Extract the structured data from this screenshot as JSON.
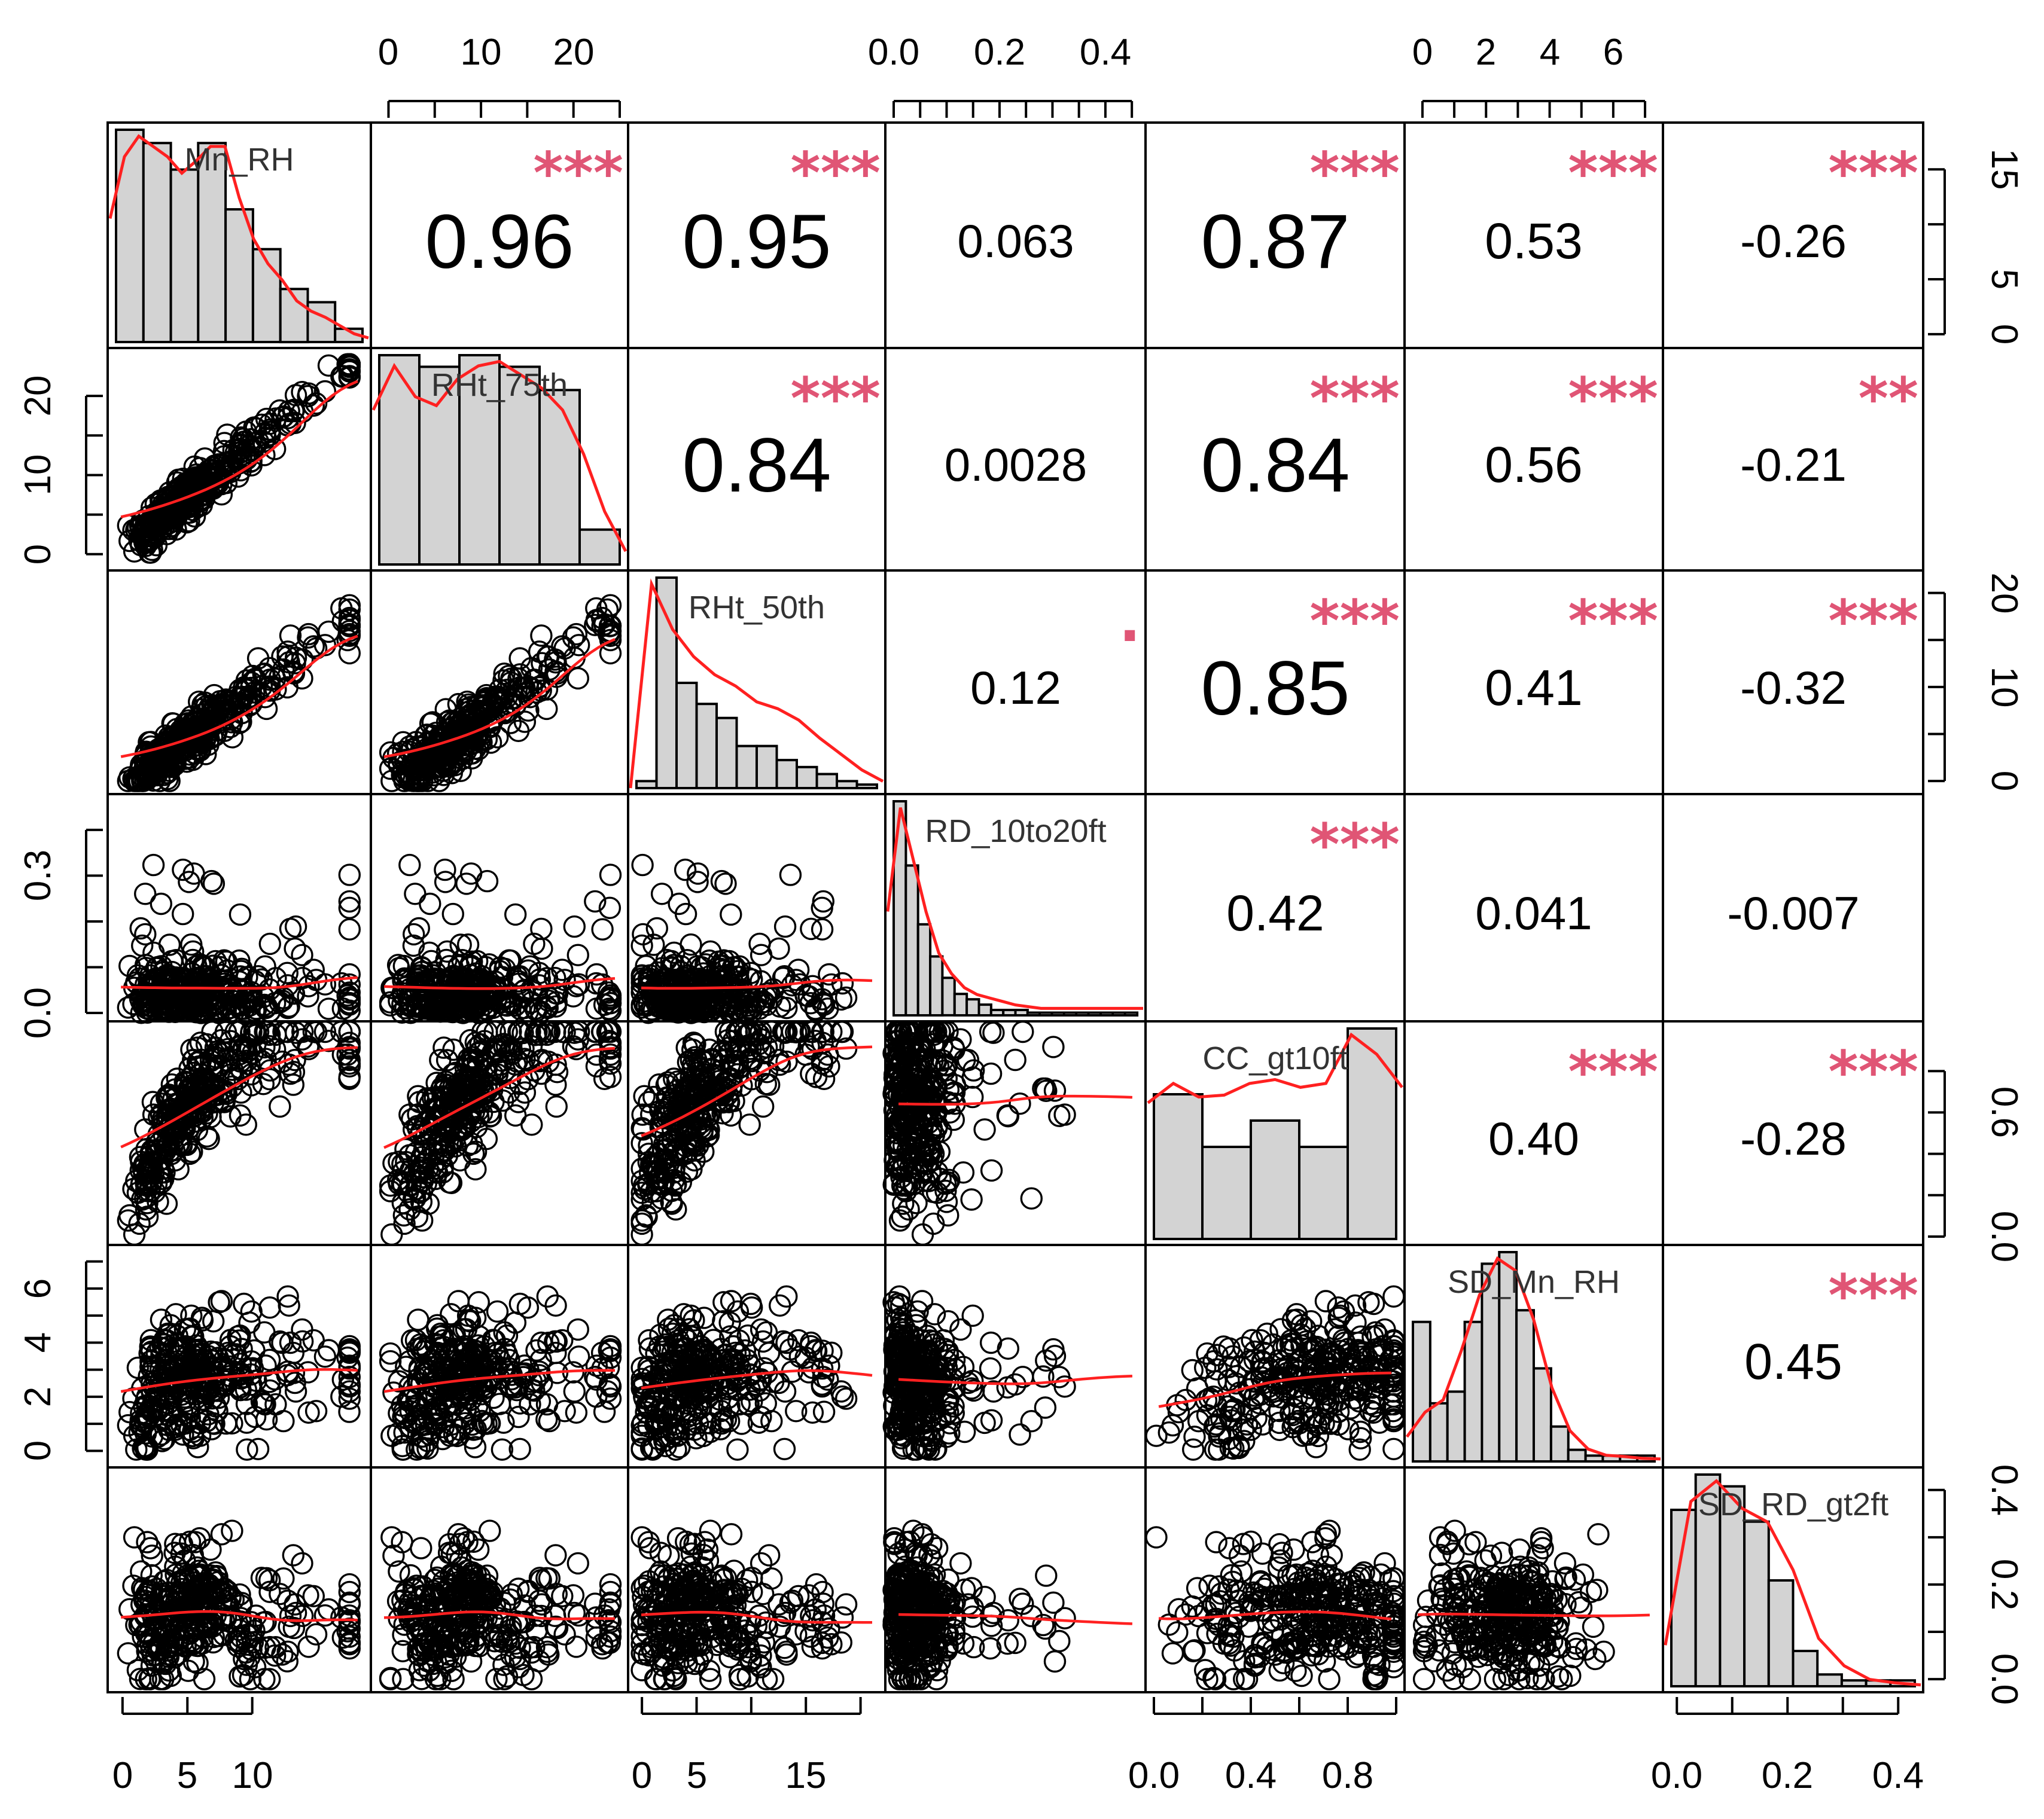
{
  "chart_data": {
    "type": "scatter-matrix",
    "title": "",
    "variables": [
      "Mn_RH",
      "RHt_75th",
      "RHt_50th",
      "RD_10to20ft",
      "CC_gt10ft",
      "SD_Mn_RH",
      "SD_RD_gt2ft"
    ],
    "ranges": [
      [
        -0.5,
        18.5
      ],
      [
        -1,
        25
      ],
      [
        -0.5,
        21.5
      ],
      [
        0,
        0.46
      ],
      [
        0,
        1
      ],
      [
        -0.3,
        7.3
      ],
      [
        -0.01,
        0.43
      ]
    ],
    "colors": {
      "hist_fill": "#d3d3d3",
      "smooth_line": "#ff2020",
      "significance": "#e05575",
      "point_stroke": "#000000"
    },
    "top_axes": [
      {
        "column": 1,
        "ticks": [
          0,
          5,
          10,
          15,
          20,
          25
        ],
        "labels": [
          {
            "v": 0,
            "t": "0"
          },
          {
            "v": 10,
            "t": "10"
          },
          {
            "v": 20,
            "t": "20"
          }
        ]
      },
      {
        "column": 3,
        "ticks": [
          0,
          0.05,
          0.1,
          0.15,
          0.2,
          0.25,
          0.3,
          0.35,
          0.4,
          0.45
        ],
        "labels": [
          {
            "v": 0,
            "t": "0.0"
          },
          {
            "v": 0.2,
            "t": "0.2"
          },
          {
            "v": 0.4,
            "t": "0.4"
          }
        ]
      },
      {
        "column": 5,
        "ticks": [
          0,
          1,
          2,
          3,
          4,
          5,
          6,
          7
        ],
        "labels": [
          {
            "v": 0,
            "t": "0"
          },
          {
            "v": 2,
            "t": "2"
          },
          {
            "v": 4,
            "t": "4"
          },
          {
            "v": 6,
            "t": "6"
          }
        ]
      }
    ],
    "bottom_axes": [
      {
        "column": 0,
        "ticks": [
          0,
          5,
          10
        ],
        "labels": [
          {
            "v": 0,
            "t": "0"
          },
          {
            "v": 5,
            "t": "5"
          },
          {
            "v": 10,
            "t": "10"
          }
        ]
      },
      {
        "column": 2,
        "ticks": [
          0,
          5,
          10,
          15,
          20
        ],
        "labels": [
          {
            "v": 0,
            "t": "0"
          },
          {
            "v": 5,
            "t": "5"
          },
          {
            "v": 15,
            "t": "15"
          }
        ]
      },
      {
        "column": 4,
        "ticks": [
          0,
          0.2,
          0.4,
          0.6,
          0.8,
          1.0
        ],
        "labels": [
          {
            "v": 0,
            "t": "0.0"
          },
          {
            "v": 0.4,
            "t": "0.4"
          },
          {
            "v": 0.8,
            "t": "0.8"
          }
        ]
      },
      {
        "column": 6,
        "ticks": [
          0,
          0.1,
          0.2,
          0.3,
          0.4
        ],
        "labels": [
          {
            "v": 0,
            "t": "0.0"
          },
          {
            "v": 0.2,
            "t": "0.2"
          },
          {
            "v": 0.4,
            "t": "0.4"
          }
        ]
      }
    ],
    "left_axes": [
      {
        "row": 1,
        "ticks": [
          0,
          5,
          10,
          15,
          20
        ],
        "labels": [
          {
            "v": 0,
            "t": "0"
          },
          {
            "v": 10,
            "t": "10"
          },
          {
            "v": 20,
            "t": "20"
          }
        ]
      },
      {
        "row": 3,
        "ticks": [
          0,
          0.1,
          0.2,
          0.3,
          0.4
        ],
        "labels": [
          {
            "v": 0,
            "t": "0.0"
          },
          {
            "v": 0.3,
            "t": "0.3"
          }
        ]
      },
      {
        "row": 5,
        "ticks": [
          0,
          1,
          2,
          3,
          4,
          5,
          6,
          7
        ],
        "labels": [
          {
            "v": 0,
            "t": "0"
          },
          {
            "v": 2,
            "t": "2"
          },
          {
            "v": 4,
            "t": "4"
          },
          {
            "v": 6,
            "t": "6"
          }
        ]
      }
    ],
    "right_axes": [
      {
        "row": 0,
        "ticks": [
          0,
          5,
          10,
          15
        ],
        "labels": [
          {
            "v": 0,
            "t": "0"
          },
          {
            "v": 5,
            "t": "5"
          },
          {
            "v": 15,
            "t": "15"
          }
        ]
      },
      {
        "row": 2,
        "ticks": [
          0,
          5,
          10,
          15,
          20
        ],
        "labels": [
          {
            "v": 0,
            "t": "0"
          },
          {
            "v": 10,
            "t": "10"
          },
          {
            "v": 20,
            "t": "20"
          }
        ]
      },
      {
        "row": 4,
        "ticks": [
          0,
          0.2,
          0.4,
          0.6,
          0.8
        ],
        "labels": [
          {
            "v": 0,
            "t": "0.0"
          },
          {
            "v": 0.6,
            "t": "0.6"
          }
        ]
      },
      {
        "row": 6,
        "ticks": [
          0,
          0.1,
          0.2,
          0.3,
          0.4
        ],
        "labels": [
          {
            "v": 0,
            "t": "0.0"
          },
          {
            "v": 0.2,
            "t": "0.2"
          },
          {
            "v": 0.4,
            "t": "0.4"
          }
        ]
      }
    ],
    "correlations": [
      {
        "row": 0,
        "col": 1,
        "text": "0.96",
        "stars": "***",
        "size": "large"
      },
      {
        "row": 0,
        "col": 2,
        "text": "0.95",
        "stars": "***",
        "size": "large"
      },
      {
        "row": 0,
        "col": 3,
        "text": "0.063",
        "stars": "",
        "size": "small"
      },
      {
        "row": 0,
        "col": 4,
        "text": "0.87",
        "stars": "***",
        "size": "large"
      },
      {
        "row": 0,
        "col": 5,
        "text": "0.53",
        "stars": "***",
        "size": "medium"
      },
      {
        "row": 0,
        "col": 6,
        "text": "-0.26",
        "stars": "***",
        "size": "small"
      },
      {
        "row": 1,
        "col": 2,
        "text": "0.84",
        "stars": "***",
        "size": "large"
      },
      {
        "row": 1,
        "col": 3,
        "text": "0.0028",
        "stars": "",
        "size": "small"
      },
      {
        "row": 1,
        "col": 4,
        "text": "0.84",
        "stars": "***",
        "size": "large"
      },
      {
        "row": 1,
        "col": 5,
        "text": "0.56",
        "stars": "***",
        "size": "medium"
      },
      {
        "row": 1,
        "col": 6,
        "text": "-0.21",
        "stars": "**",
        "size": "small"
      },
      {
        "row": 2,
        "col": 3,
        "text": "0.12",
        "stars": ".",
        "size": "small"
      },
      {
        "row": 2,
        "col": 4,
        "text": "0.85",
        "stars": "***",
        "size": "large"
      },
      {
        "row": 2,
        "col": 5,
        "text": "0.41",
        "stars": "***",
        "size": "medium"
      },
      {
        "row": 2,
        "col": 6,
        "text": "-0.32",
        "stars": "***",
        "size": "small"
      },
      {
        "row": 3,
        "col": 4,
        "text": "0.42",
        "stars": "***",
        "size": "medium"
      },
      {
        "row": 3,
        "col": 5,
        "text": "0.041",
        "stars": "",
        "size": "small"
      },
      {
        "row": 3,
        "col": 6,
        "text": "-0.007",
        "stars": "",
        "size": "small"
      },
      {
        "row": 4,
        "col": 5,
        "text": "0.40",
        "stars": "***",
        "size": "small"
      },
      {
        "row": 4,
        "col": 6,
        "text": "-0.28",
        "stars": "***",
        "size": "small"
      },
      {
        "row": 5,
        "col": 6,
        "text": "0.45",
        "stars": "***",
        "size": "medium"
      }
    ],
    "histograms": [
      {
        "variable": "Mn_RH",
        "bin_start": 0,
        "bin_width": 2,
        "counts": [
          16,
          15,
          13,
          15,
          10,
          7,
          4,
          3,
          1
        ],
        "density_y": [
          0.06,
          0.09,
          0.1,
          0.095,
          0.09,
          0.082,
          0.088,
          0.095,
          0.095,
          0.07,
          0.05,
          0.038,
          0.03,
          0.02,
          0.015,
          0.012,
          0.008,
          0.004,
          0.002
        ]
      },
      {
        "variable": "RHt_75th",
        "bin_start": 0,
        "bin_width": 4,
        "counts": [
          18,
          17,
          18,
          17,
          15,
          3
        ],
        "density_y": [
          0.035,
          0.045,
          0.038,
          0.036,
          0.042,
          0.045,
          0.046,
          0.043,
          0.04,
          0.035,
          0.025,
          0.012,
          0.003
        ]
      },
      {
        "variable": "RHt_50th",
        "bin_start": 0,
        "bin_width": 1.5,
        "counts": [
          1,
          30,
          15,
          12,
          10,
          6,
          6,
          4,
          3,
          2,
          1,
          0.5
        ],
        "density_y": [
          0.0,
          0.09,
          0.07,
          0.058,
          0.05,
          0.045,
          0.038,
          0.035,
          0.03,
          0.022,
          0.015,
          0.008,
          0.003
        ]
      },
      {
        "variable": "RD_10to20ft",
        "bin_start": 0,
        "bin_width": 0.02,
        "counts": [
          40,
          28,
          17,
          11,
          7,
          4,
          3,
          2,
          1,
          1,
          1,
          0.5,
          0.5,
          0.5,
          0.5,
          0.5,
          0.5,
          0.5,
          0.5,
          0.5
        ],
        "density_y": [
          0.3,
          0.6,
          0.45,
          0.3,
          0.18,
          0.12,
          0.08,
          0.06,
          0.05,
          0.04,
          0.03,
          0.025,
          0.02,
          0.02,
          0.02,
          0.02,
          0.02,
          0.02,
          0.02,
          0.02,
          0.02
        ]
      },
      {
        "variable": "CC_gt10ft",
        "bin_start": 0,
        "bin_width": 0.2,
        "counts": [
          11,
          7,
          9,
          7,
          16
        ],
        "density_y": [
          0.7,
          0.8,
          0.73,
          0.74,
          0.8,
          0.82,
          0.78,
          0.8,
          1.05,
          0.95,
          0.78
        ]
      },
      {
        "variable": "SD_Mn_RH",
        "bin_start": 0,
        "bin_width": 0.5,
        "counts": [
          12,
          5,
          6,
          12,
          17,
          18,
          13,
          8,
          3,
          1,
          0.5,
          0.5,
          0.5,
          0.5
        ],
        "density_y": [
          0.04,
          0.08,
          0.1,
          0.18,
          0.27,
          0.33,
          0.31,
          0.23,
          0.12,
          0.05,
          0.02,
          0.01,
          0.008,
          0.005,
          0.004
        ]
      },
      {
        "variable": "SD_RD_gt2ft",
        "bin_start": 0,
        "bin_width": 0.04,
        "counts": [
          15,
          18,
          17,
          14,
          9,
          3,
          1,
          0.5,
          0.5,
          0.5
        ],
        "density_y": [
          0.6,
          2.7,
          3.0,
          2.6,
          2.4,
          1.7,
          0.7,
          0.3,
          0.1,
          0.05,
          0.02
        ]
      }
    ]
  }
}
